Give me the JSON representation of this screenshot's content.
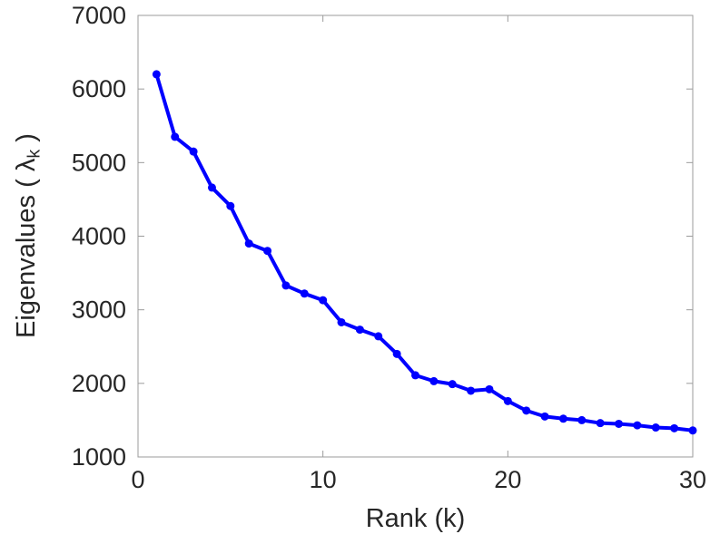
{
  "chart_data": {
    "type": "line",
    "title": "",
    "xlabel": "Rank (k)",
    "ylabel": "Eigenvalues ( λk )",
    "ylabel_parts": {
      "prefix": "Eigenvalues ( λ",
      "subscript": "k",
      "suffix": " )"
    },
    "x": [
      1,
      2,
      3,
      4,
      5,
      6,
      7,
      8,
      9,
      10,
      11,
      12,
      13,
      14,
      15,
      16,
      17,
      18,
      19,
      20,
      21,
      22,
      23,
      24,
      25,
      26,
      27,
      28,
      29,
      30
    ],
    "y": [
      6200,
      5350,
      5150,
      4660,
      4410,
      3900,
      3800,
      3330,
      3220,
      3130,
      2830,
      2730,
      2640,
      2400,
      2110,
      2030,
      1990,
      1900,
      1920,
      1760,
      1630,
      1550,
      1520,
      1500,
      1460,
      1450,
      1430,
      1400,
      1390,
      1360
    ],
    "xlim": [
      0,
      30
    ],
    "ylim": [
      1000,
      7000
    ],
    "xticks": [
      "0",
      "10",
      "20",
      "30"
    ],
    "yticks": [
      "1000",
      "2000",
      "3000",
      "4000",
      "5000",
      "6000",
      "7000"
    ],
    "grid": false,
    "legend": "none",
    "marker": "filled-circle",
    "line_width": 4,
    "tick_direction": "in",
    "box": true,
    "colors": {
      "line": "#0000ff",
      "axis": "#9b9b9b",
      "text": "#262626",
      "background": "#ffffff"
    }
  }
}
